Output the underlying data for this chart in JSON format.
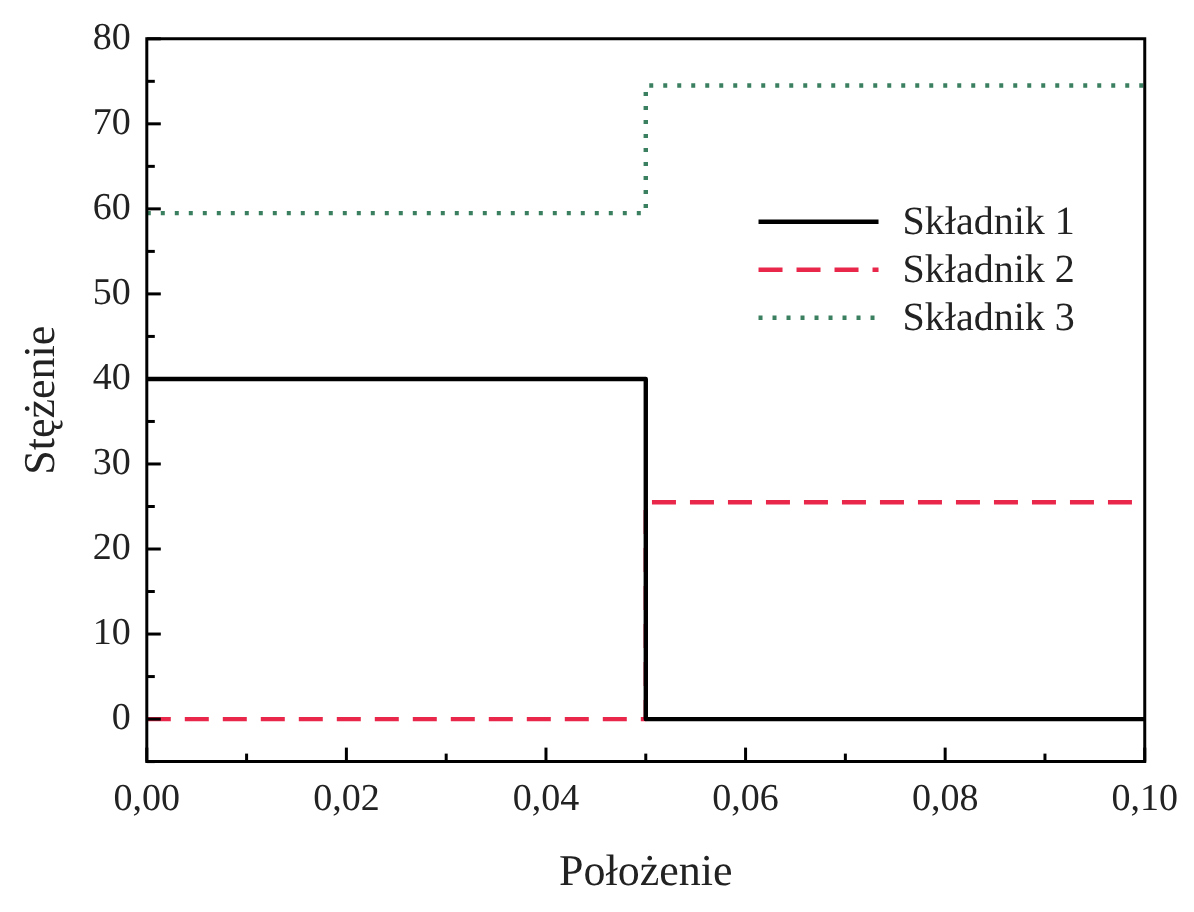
{
  "chart_data": {
    "type": "step",
    "xlabel": "Położenie",
    "ylabel": "Stężenie",
    "x": [
      0,
      0.05,
      0.1
    ],
    "series": [
      {
        "name": "Składnik 1",
        "color": "#000000",
        "values": [
          40,
          0,
          0
        ],
        "line_style": "solid"
      },
      {
        "name": "Składnik 2",
        "color": "#e8274b",
        "values": [
          0,
          25.5,
          25.5
        ],
        "line_style": "dashed"
      },
      {
        "name": "Składnik 3",
        "color": "#3a7f5f",
        "values": [
          59.5,
          74.5,
          74.5
        ],
        "line_style": "dotted"
      }
    ],
    "xlim": [
      0,
      0.1
    ],
    "xticks": [
      {
        "value": 0,
        "label": "0,00"
      },
      {
        "value": 0.01,
        "label": null
      },
      {
        "value": 0.02,
        "label": "0,02"
      },
      {
        "value": 0.03,
        "label": null
      },
      {
        "value": 0.04,
        "label": "0,04"
      },
      {
        "value": 0.05,
        "label": null
      },
      {
        "value": 0.06,
        "label": "0,06"
      },
      {
        "value": 0.07,
        "label": null
      },
      {
        "value": 0.08,
        "label": "0,08"
      },
      {
        "value": 0.09,
        "label": null
      },
      {
        "value": 0.1,
        "label": "0,10"
      }
    ],
    "ylim": [
      -5,
      80
    ],
    "yticks": [
      {
        "value": -5,
        "label": null
      },
      0,
      {
        "value": 5,
        "label": null
      },
      10,
      {
        "value": 15,
        "label": null
      },
      20,
      {
        "value": 25,
        "label": null
      },
      30,
      {
        "value": 35,
        "label": null
      },
      40,
      {
        "value": 45,
        "label": null
      },
      50,
      {
        "value": 55,
        "label": null
      },
      60,
      {
        "value": 65,
        "label": null
      },
      70,
      {
        "value": 75,
        "label": null
      },
      80
    ],
    "grid": false,
    "legend": "right",
    "marker": "none"
  }
}
